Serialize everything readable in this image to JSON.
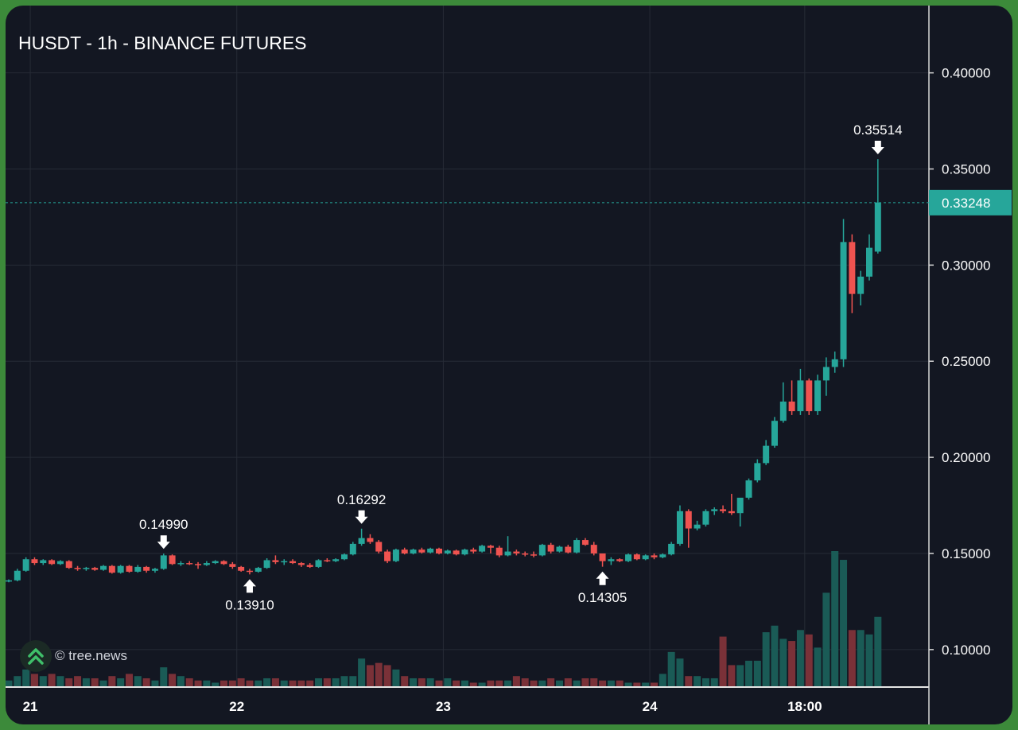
{
  "header": {
    "title": "HUSDT - 1h - BINANCE FUTURES"
  },
  "watermark": {
    "text": "© tree.news",
    "icon": "double-chevron-up-icon"
  },
  "colors": {
    "up": "#26a69a",
    "down": "#ef5350",
    "background": "#131722",
    "grid": "#262b36"
  },
  "chart_data": {
    "type": "candlestick",
    "title": "HUSDT - 1h - BINANCE FUTURES",
    "x_ticks": [
      "21",
      "22",
      "23",
      "24",
      "18:00"
    ],
    "y_ticks": [
      "0.40000",
      "0.35000",
      "0.30000",
      "0.25000",
      "0.20000",
      "0.15000",
      "0.10000"
    ],
    "ylim": [
      0.0805,
      0.435
    ],
    "last_price": "0.33248",
    "annotations": [
      {
        "label": "0.14990",
        "type": "high"
      },
      {
        "label": "0.13910",
        "type": "low"
      },
      {
        "label": "0.16292",
        "type": "high"
      },
      {
        "label": "0.14305",
        "type": "low"
      },
      {
        "label": "0.35514",
        "type": "high"
      }
    ],
    "ohlc": [
      [
        0.1355,
        0.1365,
        0.135,
        0.136
      ],
      [
        0.136,
        0.142,
        0.1355,
        0.141
      ],
      [
        0.141,
        0.148,
        0.1405,
        0.147
      ],
      [
        0.147,
        0.148,
        0.144,
        0.145
      ],
      [
        0.145,
        0.147,
        0.144,
        0.1465
      ],
      [
        0.1465,
        0.147,
        0.144,
        0.1445
      ],
      [
        0.1445,
        0.1465,
        0.144,
        0.146
      ],
      [
        0.146,
        0.1465,
        0.142,
        0.1425
      ],
      [
        0.1425,
        0.1435,
        0.141,
        0.142
      ],
      [
        0.142,
        0.143,
        0.141,
        0.1425
      ],
      [
        0.1425,
        0.143,
        0.141,
        0.1415
      ],
      [
        0.1415,
        0.144,
        0.141,
        0.1435
      ],
      [
        0.1435,
        0.144,
        0.1395,
        0.14
      ],
      [
        0.14,
        0.144,
        0.1395,
        0.1435
      ],
      [
        0.1435,
        0.144,
        0.14,
        0.1405
      ],
      [
        0.1405,
        0.144,
        0.14,
        0.143
      ],
      [
        0.143,
        0.1435,
        0.14,
        0.141
      ],
      [
        0.141,
        0.1425,
        0.14,
        0.142
      ],
      [
        0.142,
        0.1499,
        0.1415,
        0.149
      ],
      [
        0.149,
        0.1495,
        0.144,
        0.1445
      ],
      [
        0.1445,
        0.146,
        0.1435,
        0.145
      ],
      [
        0.145,
        0.146,
        0.144,
        0.1445
      ],
      [
        0.1445,
        0.1455,
        0.142,
        0.144
      ],
      [
        0.144,
        0.146,
        0.1435,
        0.145
      ],
      [
        0.145,
        0.1465,
        0.1445,
        0.146
      ],
      [
        0.146,
        0.1465,
        0.144,
        0.1445
      ],
      [
        0.1445,
        0.1455,
        0.142,
        0.143
      ],
      [
        0.143,
        0.1435,
        0.1405,
        0.141
      ],
      [
        0.141,
        0.142,
        0.1391,
        0.1405
      ],
      [
        0.1405,
        0.143,
        0.14,
        0.1425
      ],
      [
        0.1425,
        0.1475,
        0.142,
        0.1465
      ],
      [
        0.1465,
        0.149,
        0.1445,
        0.1455
      ],
      [
        0.1455,
        0.147,
        0.144,
        0.146
      ],
      [
        0.146,
        0.147,
        0.1445,
        0.145
      ],
      [
        0.145,
        0.1455,
        0.143,
        0.144
      ],
      [
        0.144,
        0.145,
        0.1425,
        0.143
      ],
      [
        0.143,
        0.147,
        0.1425,
        0.1465
      ],
      [
        0.1465,
        0.1475,
        0.1455,
        0.146
      ],
      [
        0.146,
        0.1475,
        0.1455,
        0.147
      ],
      [
        0.147,
        0.15,
        0.1465,
        0.1495
      ],
      [
        0.1495,
        0.156,
        0.149,
        0.155
      ],
      [
        0.155,
        0.1629,
        0.154,
        0.158
      ],
      [
        0.158,
        0.16,
        0.155,
        0.156
      ],
      [
        0.156,
        0.157,
        0.15,
        0.151
      ],
      [
        0.151,
        0.152,
        0.145,
        0.146
      ],
      [
        0.146,
        0.1525,
        0.1455,
        0.152
      ],
      [
        0.152,
        0.153,
        0.1495,
        0.15
      ],
      [
        0.15,
        0.1525,
        0.1495,
        0.152
      ],
      [
        0.152,
        0.153,
        0.15,
        0.1505
      ],
      [
        0.1505,
        0.153,
        0.15,
        0.1525
      ],
      [
        0.1525,
        0.153,
        0.1495,
        0.15
      ],
      [
        0.15,
        0.152,
        0.1495,
        0.1515
      ],
      [
        0.1515,
        0.152,
        0.149,
        0.1495
      ],
      [
        0.1495,
        0.1525,
        0.149,
        0.152
      ],
      [
        0.152,
        0.153,
        0.15,
        0.151
      ],
      [
        0.151,
        0.1545,
        0.1505,
        0.154
      ],
      [
        0.154,
        0.1545,
        0.15,
        0.153
      ],
      [
        0.153,
        0.154,
        0.148,
        0.149
      ],
      [
        0.149,
        0.159,
        0.1485,
        0.151
      ],
      [
        0.151,
        0.152,
        0.149,
        0.15
      ],
      [
        0.15,
        0.151,
        0.1485,
        0.1495
      ],
      [
        0.1495,
        0.151,
        0.148,
        0.149
      ],
      [
        0.149,
        0.155,
        0.1485,
        0.1545
      ],
      [
        0.1545,
        0.1555,
        0.15,
        0.151
      ],
      [
        0.151,
        0.154,
        0.1505,
        0.1535
      ],
      [
        0.1535,
        0.1545,
        0.15,
        0.1505
      ],
      [
        0.1505,
        0.158,
        0.15,
        0.157
      ],
      [
        0.157,
        0.158,
        0.154,
        0.1545
      ],
      [
        0.1545,
        0.156,
        0.149,
        0.15
      ],
      [
        0.15,
        0.147,
        0.1431,
        0.146
      ],
      [
        0.146,
        0.148,
        0.144,
        0.147
      ],
      [
        0.147,
        0.1475,
        0.1455,
        0.146
      ],
      [
        0.146,
        0.15,
        0.1455,
        0.1495
      ],
      [
        0.1495,
        0.15,
        0.1465,
        0.147
      ],
      [
        0.147,
        0.1495,
        0.1465,
        0.149
      ],
      [
        0.149,
        0.15,
        0.147,
        0.148
      ],
      [
        0.148,
        0.15,
        0.1475,
        0.1495
      ],
      [
        0.1495,
        0.156,
        0.149,
        0.155
      ],
      [
        0.155,
        0.175,
        0.154,
        0.172
      ],
      [
        0.172,
        0.173,
        0.153,
        0.163
      ],
      [
        0.163,
        0.167,
        0.162,
        0.165
      ],
      [
        0.165,
        0.173,
        0.164,
        0.172
      ],
      [
        0.172,
        0.174,
        0.17,
        0.173
      ],
      [
        0.173,
        0.175,
        0.171,
        0.172
      ],
      [
        0.172,
        0.181,
        0.17,
        0.171
      ],
      [
        0.171,
        0.178,
        0.164,
        0.179
      ],
      [
        0.179,
        0.189,
        0.178,
        0.188
      ],
      [
        0.188,
        0.199,
        0.187,
        0.197
      ],
      [
        0.197,
        0.209,
        0.196,
        0.206
      ],
      [
        0.206,
        0.221,
        0.205,
        0.219
      ],
      [
        0.219,
        0.239,
        0.218,
        0.229
      ],
      [
        0.229,
        0.24,
        0.222,
        0.224
      ],
      [
        0.224,
        0.246,
        0.222,
        0.24
      ],
      [
        0.24,
        0.241,
        0.222,
        0.224
      ],
      [
        0.224,
        0.243,
        0.222,
        0.24
      ],
      [
        0.24,
        0.252,
        0.232,
        0.247
      ],
      [
        0.247,
        0.255,
        0.244,
        0.251
      ],
      [
        0.251,
        0.324,
        0.247,
        0.312
      ],
      [
        0.312,
        0.316,
        0.275,
        0.285
      ],
      [
        0.285,
        0.297,
        0.279,
        0.294
      ],
      [
        0.294,
        0.316,
        0.292,
        0.309
      ],
      [
        0.307,
        0.3551,
        0.306,
        0.3325
      ]
    ],
    "volume": [
      3,
      5,
      8,
      6,
      5,
      6,
      5,
      4,
      5,
      4,
      4,
      3,
      5,
      4,
      6,
      5,
      4,
      3,
      9,
      6,
      5,
      4,
      3,
      3,
      2,
      3,
      3,
      4,
      3,
      3,
      4,
      4,
      3,
      3,
      3,
      3,
      4,
      4,
      4,
      5,
      5,
      13,
      10,
      11,
      10,
      8,
      5,
      4,
      4,
      4,
      3,
      4,
      3,
      3,
      2,
      2,
      3,
      3,
      3,
      5,
      4,
      3,
      3,
      4,
      3,
      4,
      3,
      4,
      4,
      3,
      3,
      3,
      2,
      2,
      2,
      2,
      6,
      16,
      13,
      5,
      5,
      4,
      4,
      23,
      10,
      10,
      12,
      12,
      25,
      28,
      22,
      21,
      26,
      24,
      18,
      43,
      62,
      58,
      26,
      26,
      24,
      32
    ]
  }
}
